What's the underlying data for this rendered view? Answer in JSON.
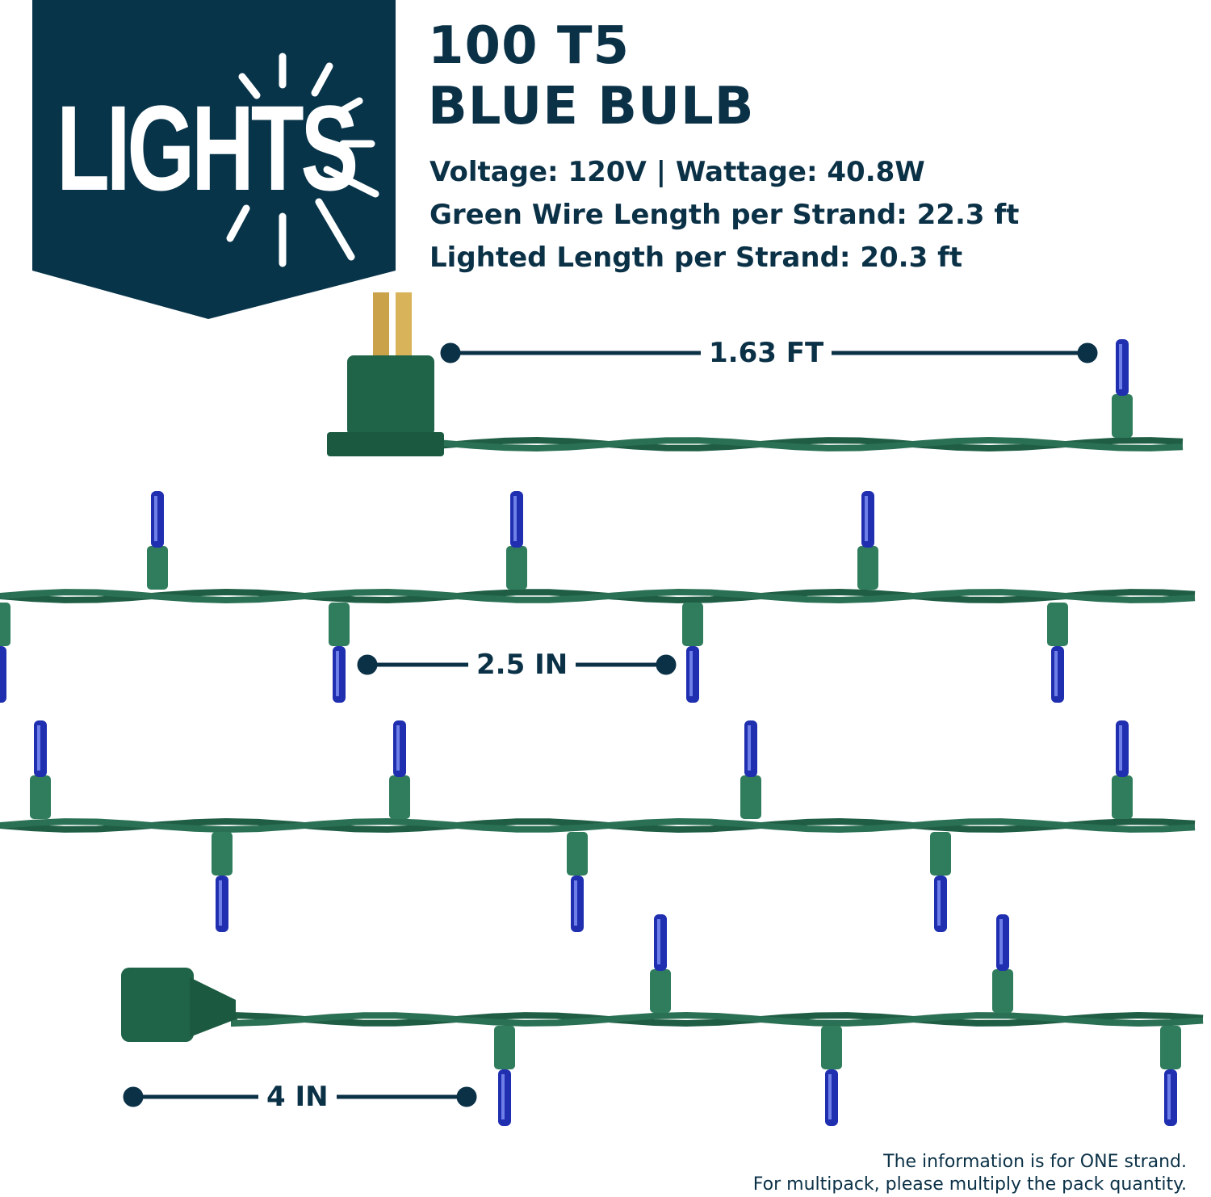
{
  "logo": {
    "text": "LIGHTS",
    "background_color": "#08344a"
  },
  "product": {
    "title_line1": "100 T5",
    "title_line2": "BLUE BULB",
    "specs": [
      "Voltage: 120V | Wattage: 40.8W",
      "Green Wire Length per Strand: 22.3 ft",
      "Lighted Length per Strand: 20.3 ft"
    ]
  },
  "dimensions": {
    "plug_to_first_bulb": "1.63 FT",
    "bulb_spacing": "2.5 IN",
    "end_lead": "4 IN"
  },
  "note": {
    "line1": "The information is for ONE strand.",
    "line2": "For multipack, please multiply the pack quantity."
  },
  "colors": {
    "text": "#0b3147",
    "wire": "#1f5e45",
    "bulb": "#1f2fb0",
    "socket": "#2f7d5c"
  }
}
